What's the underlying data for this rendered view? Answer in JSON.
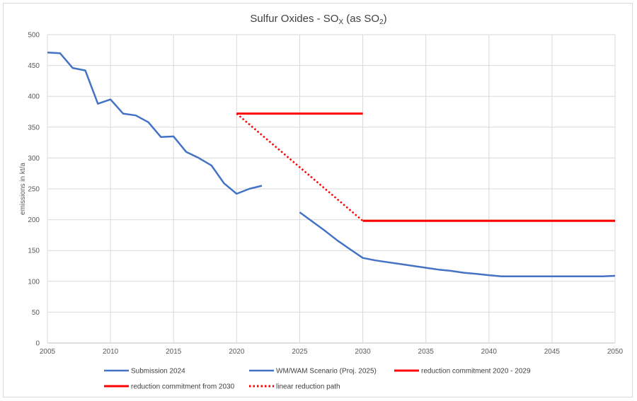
{
  "chart_data": {
    "type": "line",
    "title": "Sulfur Oxides - SO",
    "title_sub1": "X",
    "title_mid": " (as SO",
    "title_sub2": "2",
    "title_end": ")",
    "xlabel": "",
    "ylabel": "emissions in kt/a",
    "xlim": [
      2005,
      2050
    ],
    "ylim": [
      0,
      500
    ],
    "x_ticks": [
      "2005",
      "2010",
      "2015",
      "2020",
      "2025",
      "2030",
      "2035",
      "2040",
      "2045",
      "2050"
    ],
    "y_ticks": [
      "0",
      "50",
      "100",
      "150",
      "200",
      "250",
      "300",
      "350",
      "400",
      "450",
      "500"
    ],
    "grid": true,
    "legend_position": "bottom",
    "series": [
      {
        "name": "Submission 2024",
        "color": "#4472c4",
        "style": "solid",
        "x": [
          2005,
          2006,
          2007,
          2008,
          2009,
          2010,
          2011,
          2012,
          2013,
          2014,
          2015,
          2016,
          2017,
          2018,
          2019,
          2020,
          2021,
          2022
        ],
        "y": [
          471,
          470,
          446,
          442,
          388,
          395,
          372,
          369,
          358,
          334,
          335,
          310,
          300,
          288,
          259,
          242,
          250,
          255
        ]
      },
      {
        "name": "WM/WAM Scenario (Proj. 2025)",
        "color": "#4472c4",
        "style": "solid",
        "x": [
          2025,
          2026,
          2027,
          2028,
          2029,
          2030,
          2031,
          2032,
          2033,
          2034,
          2035,
          2036,
          2037,
          2038,
          2039,
          2040,
          2041,
          2042,
          2043,
          2044,
          2045,
          2046,
          2047,
          2048,
          2049,
          2050
        ],
        "y": [
          212,
          197,
          182,
          166,
          152,
          138,
          134,
          131,
          128,
          125,
          122,
          119,
          117,
          114,
          112,
          110,
          108,
          108,
          108,
          108,
          108,
          108,
          108,
          108,
          108,
          109
        ]
      },
      {
        "name": "reduction commitment 2020 - 2029",
        "color": "#ff0000",
        "style": "solid",
        "x": [
          2020,
          2030
        ],
        "y": [
          372,
          372
        ]
      },
      {
        "name": "reduction commitment from 2030",
        "color": "#ff0000",
        "style": "solid",
        "x": [
          2030,
          2050
        ],
        "y": [
          198,
          198
        ]
      },
      {
        "name": "linear reduction path",
        "color": "#ff0000",
        "style": "dotted",
        "x": [
          2020,
          2030
        ],
        "y": [
          372,
          198
        ]
      }
    ]
  }
}
